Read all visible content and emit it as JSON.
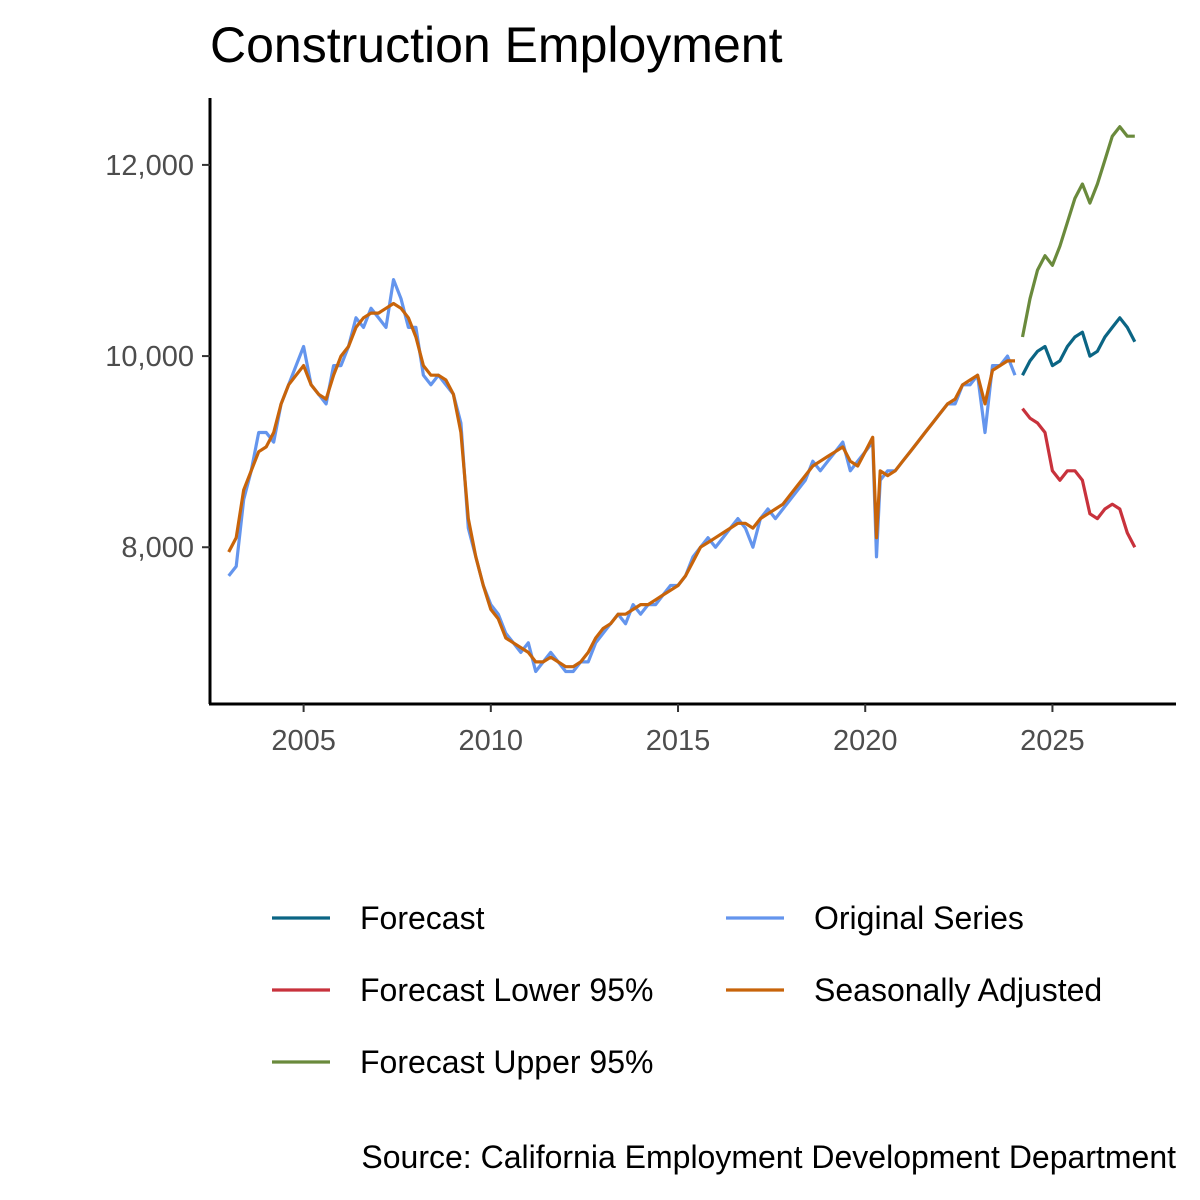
{
  "chart_data": {
    "type": "line",
    "title": "Construction Employment",
    "caption": "Source: California Employment Development Department",
    "xlabel": "",
    "ylabel": "",
    "xlim": [
      2002.5,
      2028.3
    ],
    "ylim": [
      6360,
      12700
    ],
    "x_ticks": [
      2005,
      2010,
      2015,
      2020,
      2025
    ],
    "x_tick_labels": [
      "2005",
      "2010",
      "2015",
      "2020",
      "2025"
    ],
    "y_ticks": [
      8000,
      10000,
      12000
    ],
    "y_tick_labels": [
      "8,000",
      "10,000",
      "12,000"
    ],
    "grid": false,
    "legend_position": "bottom",
    "legend": [
      {
        "name": "Forecast",
        "color": "#0b6584"
      },
      {
        "name": "Forecast Lower 95%",
        "color": "#c8323c"
      },
      {
        "name": "Forecast Upper 95%",
        "color": "#6a8a3c"
      },
      {
        "name": "Original Series",
        "color": "#6495ed"
      },
      {
        "name": "Seasonally Adjusted",
        "color": "#c8640a"
      }
    ],
    "series": [
      {
        "name": "Original Series",
        "color": "#6495ed",
        "points": [
          [
            2003.0,
            7700
          ],
          [
            2003.2,
            7800
          ],
          [
            2003.4,
            8500
          ],
          [
            2003.6,
            8800
          ],
          [
            2003.8,
            9200
          ],
          [
            2004.0,
            9200
          ],
          [
            2004.2,
            9100
          ],
          [
            2004.4,
            9500
          ],
          [
            2004.6,
            9700
          ],
          [
            2004.8,
            9900
          ],
          [
            2005.0,
            10100
          ],
          [
            2005.2,
            9700
          ],
          [
            2005.4,
            9600
          ],
          [
            2005.6,
            9500
          ],
          [
            2005.8,
            9900
          ],
          [
            2006.0,
            9900
          ],
          [
            2006.2,
            10100
          ],
          [
            2006.4,
            10400
          ],
          [
            2006.6,
            10300
          ],
          [
            2006.8,
            10500
          ],
          [
            2007.0,
            10400
          ],
          [
            2007.2,
            10300
          ],
          [
            2007.4,
            10800
          ],
          [
            2007.6,
            10600
          ],
          [
            2007.8,
            10300
          ],
          [
            2008.0,
            10300
          ],
          [
            2008.2,
            9800
          ],
          [
            2008.4,
            9700
          ],
          [
            2008.6,
            9800
          ],
          [
            2008.8,
            9700
          ],
          [
            2009.0,
            9600
          ],
          [
            2009.2,
            9300
          ],
          [
            2009.4,
            8200
          ],
          [
            2009.6,
            7900
          ],
          [
            2009.8,
            7600
          ],
          [
            2010.0,
            7400
          ],
          [
            2010.2,
            7300
          ],
          [
            2010.4,
            7100
          ],
          [
            2010.6,
            7000
          ],
          [
            2010.8,
            6900
          ],
          [
            2011.0,
            7000
          ],
          [
            2011.2,
            6700
          ],
          [
            2011.4,
            6800
          ],
          [
            2011.6,
            6900
          ],
          [
            2011.8,
            6800
          ],
          [
            2012.0,
            6700
          ],
          [
            2012.2,
            6700
          ],
          [
            2012.4,
            6800
          ],
          [
            2012.6,
            6800
          ],
          [
            2012.8,
            7000
          ],
          [
            2013.0,
            7100
          ],
          [
            2013.2,
            7200
          ],
          [
            2013.4,
            7300
          ],
          [
            2013.6,
            7200
          ],
          [
            2013.8,
            7400
          ],
          [
            2014.0,
            7300
          ],
          [
            2014.2,
            7400
          ],
          [
            2014.4,
            7400
          ],
          [
            2014.6,
            7500
          ],
          [
            2014.8,
            7600
          ],
          [
            2015.0,
            7600
          ],
          [
            2015.2,
            7700
          ],
          [
            2015.4,
            7900
          ],
          [
            2015.6,
            8000
          ],
          [
            2015.8,
            8100
          ],
          [
            2016.0,
            8000
          ],
          [
            2016.2,
            8100
          ],
          [
            2016.4,
            8200
          ],
          [
            2016.6,
            8300
          ],
          [
            2016.8,
            8200
          ],
          [
            2017.0,
            8000
          ],
          [
            2017.2,
            8300
          ],
          [
            2017.4,
            8400
          ],
          [
            2017.6,
            8300
          ],
          [
            2017.8,
            8400
          ],
          [
            2018.0,
            8500
          ],
          [
            2018.2,
            8600
          ],
          [
            2018.4,
            8700
          ],
          [
            2018.6,
            8900
          ],
          [
            2018.8,
            8800
          ],
          [
            2019.0,
            8900
          ],
          [
            2019.2,
            9000
          ],
          [
            2019.4,
            9100
          ],
          [
            2019.6,
            8800
          ],
          [
            2019.8,
            8900
          ],
          [
            2020.0,
            9000
          ],
          [
            2020.2,
            9100
          ],
          [
            2020.3,
            7900
          ],
          [
            2020.4,
            8700
          ],
          [
            2020.6,
            8800
          ],
          [
            2020.8,
            8800
          ],
          [
            2021.0,
            8900
          ],
          [
            2021.2,
            9000
          ],
          [
            2021.4,
            9100
          ],
          [
            2021.6,
            9200
          ],
          [
            2021.8,
            9300
          ],
          [
            2022.0,
            9400
          ],
          [
            2022.2,
            9500
          ],
          [
            2022.4,
            9500
          ],
          [
            2022.6,
            9700
          ],
          [
            2022.8,
            9700
          ],
          [
            2023.0,
            9800
          ],
          [
            2023.2,
            9200
          ],
          [
            2023.4,
            9900
          ],
          [
            2023.6,
            9900
          ],
          [
            2023.8,
            10000
          ],
          [
            2024.0,
            9800
          ]
        ]
      },
      {
        "name": "Seasonally Adjusted",
        "color": "#c8640a",
        "points": [
          [
            2003.0,
            7950
          ],
          [
            2003.2,
            8100
          ],
          [
            2003.4,
            8600
          ],
          [
            2003.6,
            8800
          ],
          [
            2003.8,
            9000
          ],
          [
            2004.0,
            9050
          ],
          [
            2004.2,
            9200
          ],
          [
            2004.4,
            9500
          ],
          [
            2004.6,
            9700
          ],
          [
            2004.8,
            9800
          ],
          [
            2005.0,
            9900
          ],
          [
            2005.2,
            9700
          ],
          [
            2005.4,
            9600
          ],
          [
            2005.6,
            9550
          ],
          [
            2005.8,
            9800
          ],
          [
            2006.0,
            10000
          ],
          [
            2006.2,
            10100
          ],
          [
            2006.4,
            10300
          ],
          [
            2006.6,
            10400
          ],
          [
            2006.8,
            10450
          ],
          [
            2007.0,
            10450
          ],
          [
            2007.2,
            10500
          ],
          [
            2007.4,
            10550
          ],
          [
            2007.6,
            10500
          ],
          [
            2007.8,
            10400
          ],
          [
            2008.0,
            10200
          ],
          [
            2008.2,
            9900
          ],
          [
            2008.4,
            9800
          ],
          [
            2008.6,
            9800
          ],
          [
            2008.8,
            9750
          ],
          [
            2009.0,
            9600
          ],
          [
            2009.2,
            9200
          ],
          [
            2009.4,
            8300
          ],
          [
            2009.6,
            7900
          ],
          [
            2009.8,
            7600
          ],
          [
            2010.0,
            7350
          ],
          [
            2010.2,
            7250
          ],
          [
            2010.4,
            7050
          ],
          [
            2010.6,
            7000
          ],
          [
            2010.8,
            6950
          ],
          [
            2011.0,
            6900
          ],
          [
            2011.2,
            6800
          ],
          [
            2011.4,
            6800
          ],
          [
            2011.6,
            6850
          ],
          [
            2011.8,
            6800
          ],
          [
            2012.0,
            6750
          ],
          [
            2012.2,
            6750
          ],
          [
            2012.4,
            6800
          ],
          [
            2012.6,
            6900
          ],
          [
            2012.8,
            7050
          ],
          [
            2013.0,
            7150
          ],
          [
            2013.2,
            7200
          ],
          [
            2013.4,
            7300
          ],
          [
            2013.6,
            7300
          ],
          [
            2013.8,
            7350
          ],
          [
            2014.0,
            7400
          ],
          [
            2014.2,
            7400
          ],
          [
            2014.4,
            7450
          ],
          [
            2014.6,
            7500
          ],
          [
            2014.8,
            7550
          ],
          [
            2015.0,
            7600
          ],
          [
            2015.2,
            7700
          ],
          [
            2015.4,
            7850
          ],
          [
            2015.6,
            8000
          ],
          [
            2015.8,
            8050
          ],
          [
            2016.0,
            8100
          ],
          [
            2016.2,
            8150
          ],
          [
            2016.4,
            8200
          ],
          [
            2016.6,
            8250
          ],
          [
            2016.8,
            8250
          ],
          [
            2017.0,
            8200
          ],
          [
            2017.2,
            8300
          ],
          [
            2017.4,
            8350
          ],
          [
            2017.6,
            8400
          ],
          [
            2017.8,
            8450
          ],
          [
            2018.0,
            8550
          ],
          [
            2018.2,
            8650
          ],
          [
            2018.4,
            8750
          ],
          [
            2018.6,
            8850
          ],
          [
            2018.8,
            8900
          ],
          [
            2019.0,
            8950
          ],
          [
            2019.2,
            9000
          ],
          [
            2019.4,
            9050
          ],
          [
            2019.6,
            8900
          ],
          [
            2019.8,
            8850
          ],
          [
            2020.0,
            9000
          ],
          [
            2020.2,
            9150
          ],
          [
            2020.3,
            8100
          ],
          [
            2020.4,
            8800
          ],
          [
            2020.6,
            8750
          ],
          [
            2020.8,
            8800
          ],
          [
            2021.0,
            8900
          ],
          [
            2021.2,
            9000
          ],
          [
            2021.4,
            9100
          ],
          [
            2021.6,
            9200
          ],
          [
            2021.8,
            9300
          ],
          [
            2022.0,
            9400
          ],
          [
            2022.2,
            9500
          ],
          [
            2022.4,
            9550
          ],
          [
            2022.6,
            9700
          ],
          [
            2022.8,
            9750
          ],
          [
            2023.0,
            9800
          ],
          [
            2023.2,
            9500
          ],
          [
            2023.4,
            9850
          ],
          [
            2023.6,
            9900
          ],
          [
            2023.8,
            9950
          ],
          [
            2024.0,
            9950
          ]
        ]
      },
      {
        "name": "Forecast",
        "color": "#0b6584",
        "points": [
          [
            2024.2,
            9800
          ],
          [
            2024.4,
            9950
          ],
          [
            2024.6,
            10050
          ],
          [
            2024.8,
            10100
          ],
          [
            2025.0,
            9900
          ],
          [
            2025.2,
            9950
          ],
          [
            2025.4,
            10100
          ],
          [
            2025.6,
            10200
          ],
          [
            2025.8,
            10250
          ],
          [
            2026.0,
            10000
          ],
          [
            2026.2,
            10050
          ],
          [
            2026.4,
            10200
          ],
          [
            2026.6,
            10300
          ],
          [
            2026.8,
            10400
          ],
          [
            2027.0,
            10300
          ],
          [
            2027.2,
            10150
          ]
        ]
      },
      {
        "name": "Forecast Lower 95%",
        "color": "#c8323c",
        "points": [
          [
            2024.2,
            9450
          ],
          [
            2024.4,
            9350
          ],
          [
            2024.6,
            9300
          ],
          [
            2024.8,
            9200
          ],
          [
            2025.0,
            8800
          ],
          [
            2025.2,
            8700
          ],
          [
            2025.4,
            8800
          ],
          [
            2025.6,
            8800
          ],
          [
            2025.8,
            8700
          ],
          [
            2026.0,
            8350
          ],
          [
            2026.2,
            8300
          ],
          [
            2026.4,
            8400
          ],
          [
            2026.6,
            8450
          ],
          [
            2026.8,
            8400
          ],
          [
            2027.0,
            8150
          ],
          [
            2027.2,
            8000
          ]
        ]
      },
      {
        "name": "Forecast Upper 95%",
        "color": "#6a8a3c",
        "points": [
          [
            2024.2,
            10200
          ],
          [
            2024.4,
            10600
          ],
          [
            2024.6,
            10900
          ],
          [
            2024.8,
            11050
          ],
          [
            2025.0,
            10950
          ],
          [
            2025.2,
            11150
          ],
          [
            2025.4,
            11400
          ],
          [
            2025.6,
            11650
          ],
          [
            2025.8,
            11800
          ],
          [
            2026.0,
            11600
          ],
          [
            2026.2,
            11800
          ],
          [
            2026.4,
            12050
          ],
          [
            2026.6,
            12300
          ],
          [
            2026.8,
            12400
          ],
          [
            2027.0,
            12300
          ],
          [
            2027.2,
            12300
          ]
        ]
      }
    ]
  }
}
